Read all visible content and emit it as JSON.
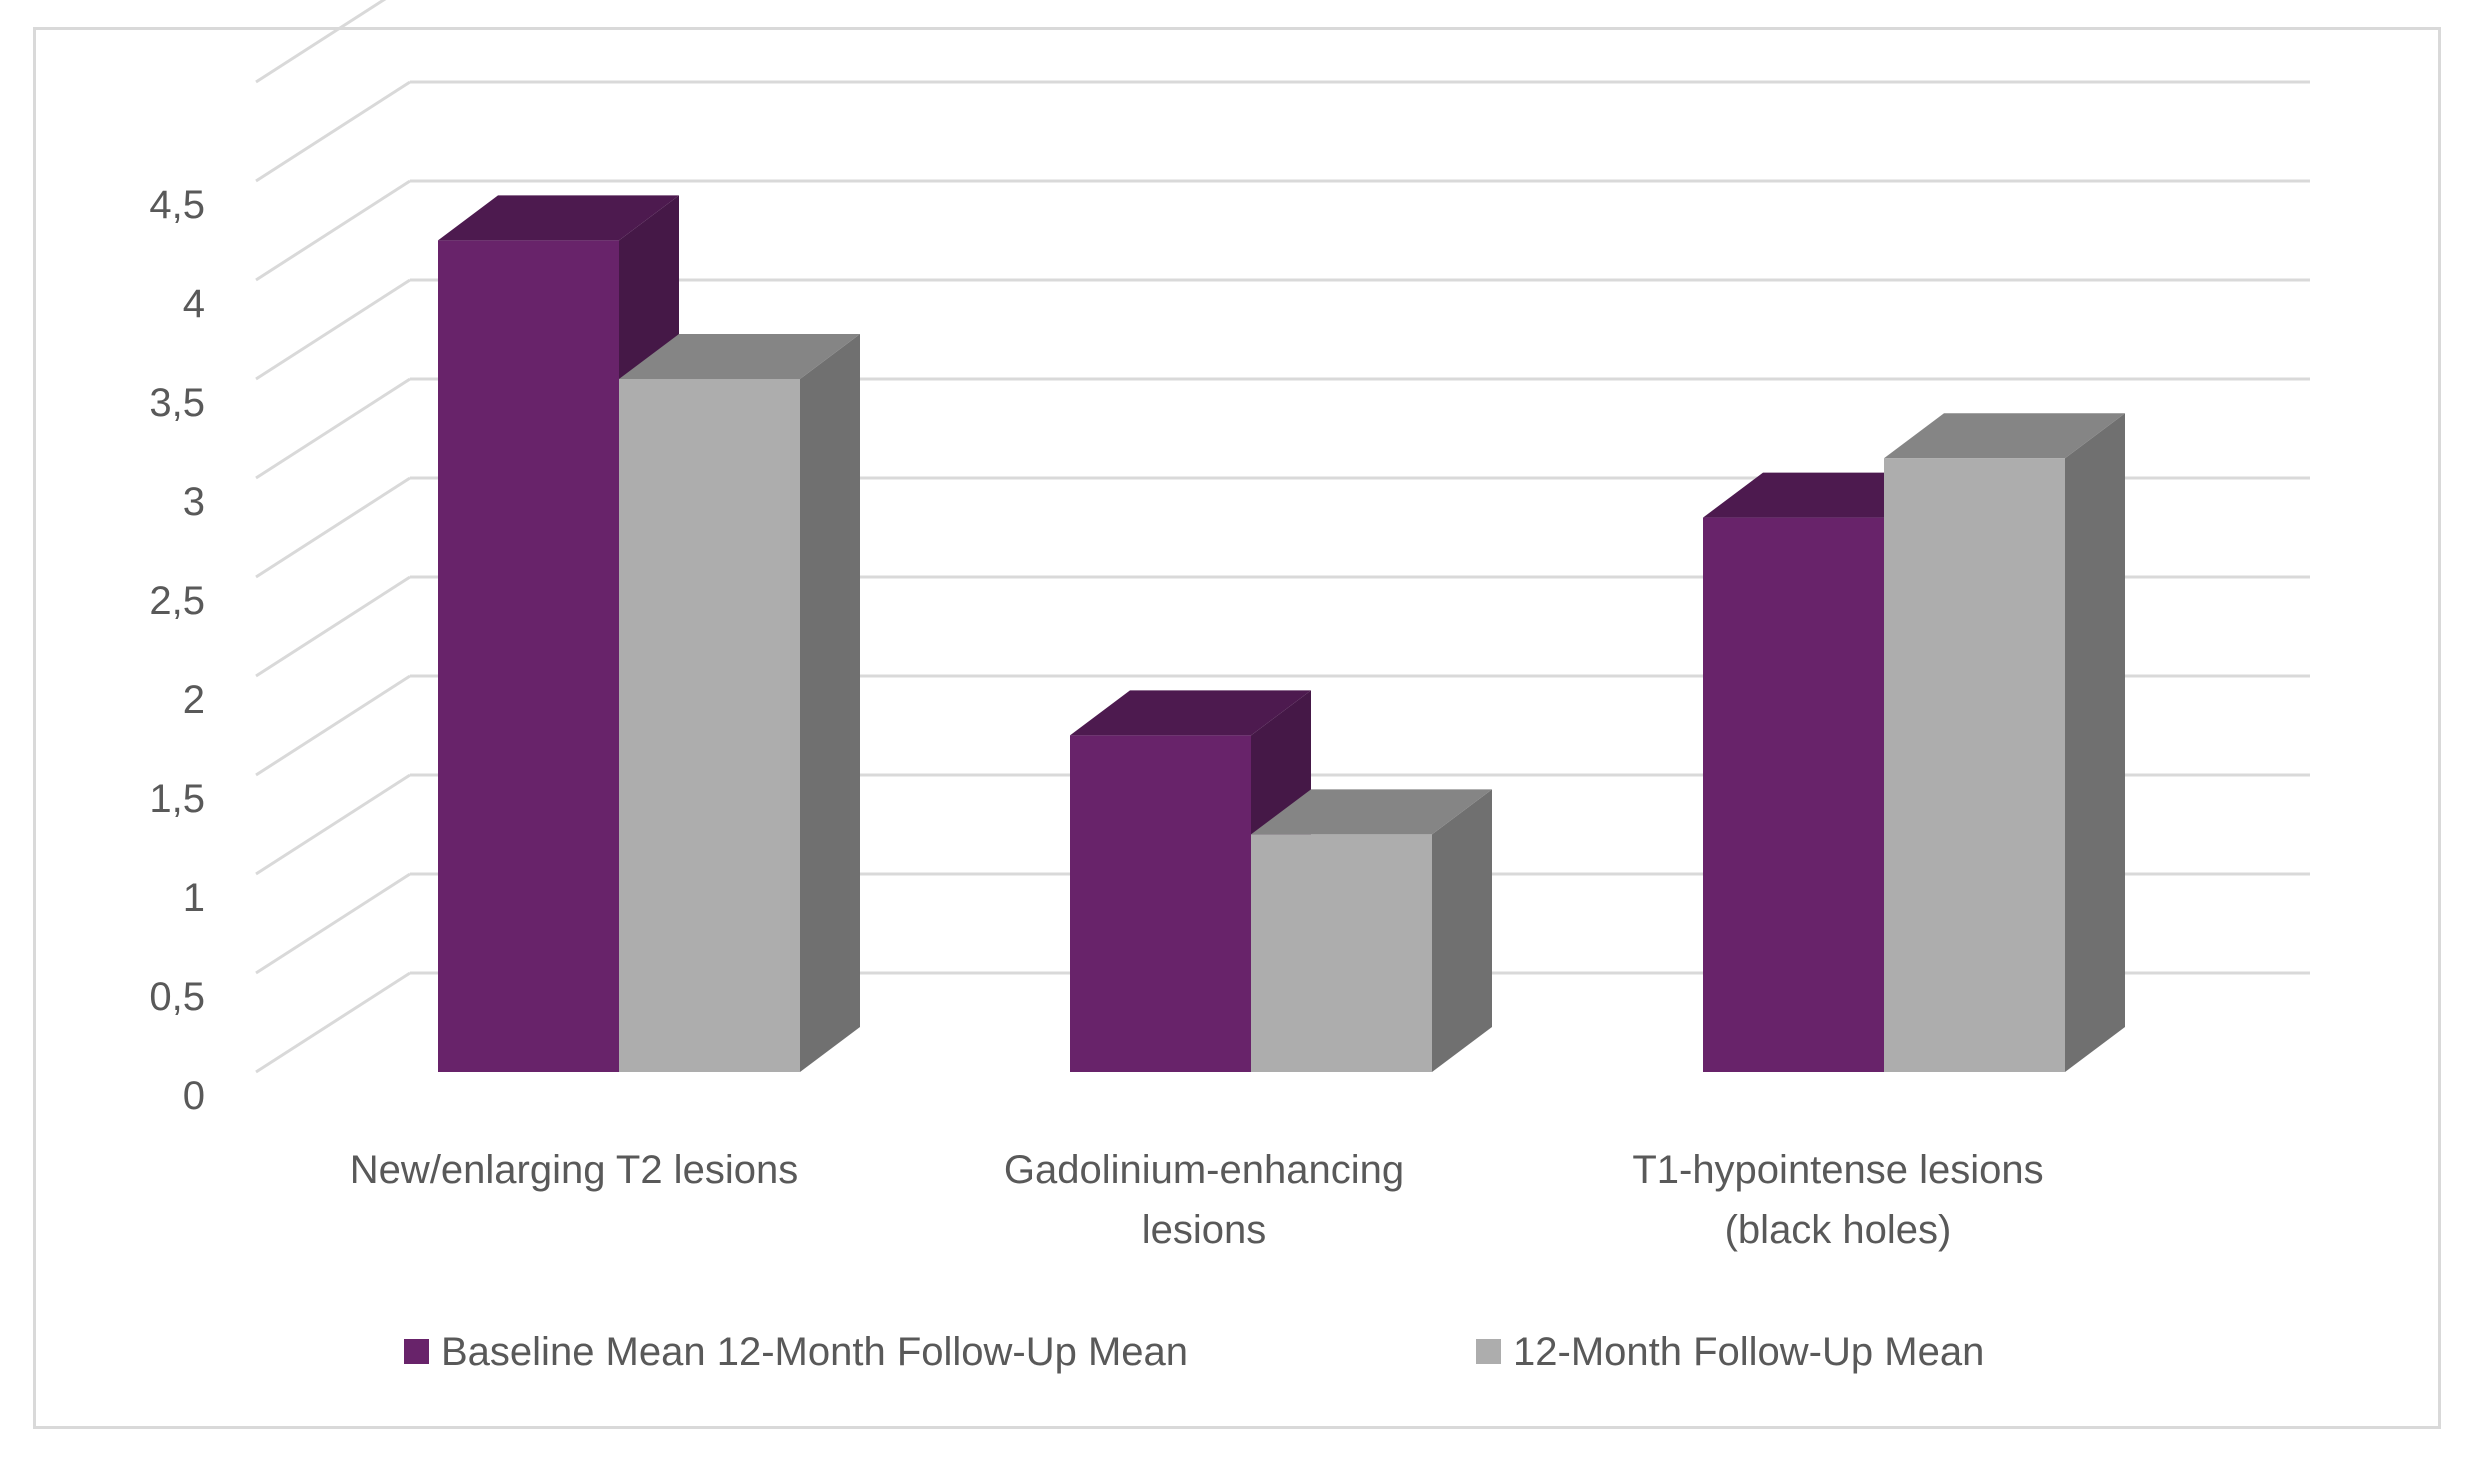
{
  "chart_data": {
    "type": "bar",
    "style": "3d-clustered-column",
    "categories": [
      [
        "New/enlarging T2 lesions"
      ],
      [
        "Gadolinium-enhancing",
        "lesions"
      ],
      [
        "T1-hypointense lesions",
        "(black holes)"
      ]
    ],
    "series": [
      {
        "name": "Baseline Mean 12-Month Follow-Up Mean",
        "values": [
          4.2,
          1.7,
          2.8
        ],
        "color": "#68236a",
        "side_color": "#451847",
        "top_color": "#4d1a4f"
      },
      {
        "name": "12-Month Follow-Up Mean",
        "values": [
          3.5,
          1.2,
          3.1
        ],
        "color": "#adadad",
        "side_color": "#707070",
        "top_color": "#858585"
      }
    ],
    "y_ticks": [
      "0",
      "0,5",
      "1",
      "1,5",
      "2",
      "2,5",
      "3",
      "3,5",
      "4",
      "4,5"
    ],
    "ylim": [
      0,
      5
    ],
    "grid": true,
    "legend_position": "bottom",
    "gridline_color": "#d9d9d9"
  }
}
